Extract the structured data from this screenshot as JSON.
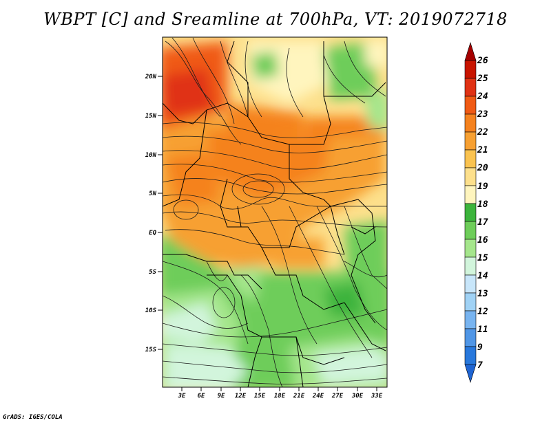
{
  "title": "WBPT [C] and Sreamline at 700hPa, VT: 2019072718",
  "footer": "GrADS: IGES/COLA",
  "map": {
    "lat_labels": [
      "20N",
      "15N",
      "10N",
      "5N",
      "EQ",
      "5S",
      "10S",
      "15S"
    ],
    "lon_labels": [
      "3E",
      "6E",
      "9E",
      "12E",
      "15E",
      "18E",
      "21E",
      "24E",
      "27E",
      "30E",
      "33E"
    ]
  },
  "colorbar": {
    "labels": [
      "26",
      "25",
      "24",
      "23",
      "22",
      "21",
      "20",
      "19",
      "18",
      "17",
      "16",
      "15",
      "14",
      "13",
      "12",
      "11",
      "9",
      "7"
    ],
    "colors": [
      "#a50000",
      "#c81400",
      "#e03214",
      "#f05a14",
      "#f5821e",
      "#f7a032",
      "#fac350",
      "#fde08c",
      "#fff5be",
      "#3cb43c",
      "#6ecd5a",
      "#a5e68c",
      "#d2f5dc",
      "#c8e6fa",
      "#a0d2f5",
      "#78b4f0",
      "#5096e6",
      "#2878dc",
      "#1e64d2"
    ]
  }
}
